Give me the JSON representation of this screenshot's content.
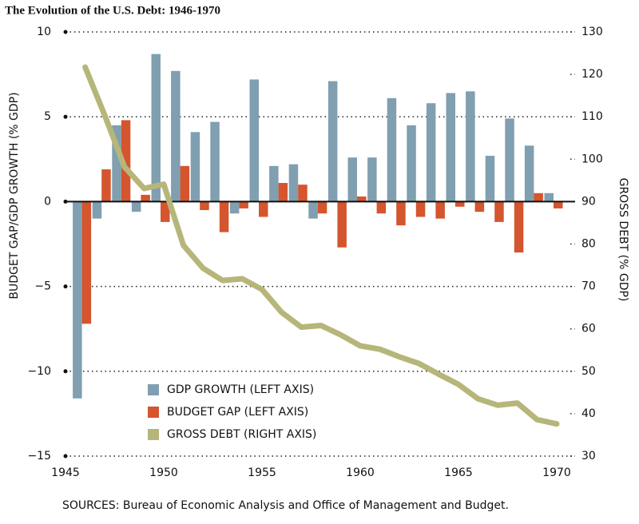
{
  "chart_data": {
    "type": "bar",
    "title": "The Evolution of the U.S. Debt: 1946-1970",
    "ylabel": "BUDGET GAP/GDP GROWTH (% GDP)",
    "y2label": "GROSS DEBT (% GDP)",
    "source": "SOURCES: Bureau of Economic Analysis and Office of Management and Budget.",
    "x": [
      1946,
      1947,
      1948,
      1949,
      1950,
      1951,
      1952,
      1953,
      1954,
      1955,
      1956,
      1957,
      1958,
      1959,
      1960,
      1961,
      1962,
      1963,
      1964,
      1965,
      1966,
      1967,
      1968,
      1969,
      1970
    ],
    "xlim": [
      1945,
      1970
    ],
    "xticks": [
      1945,
      1950,
      1955,
      1960,
      1965,
      1970
    ],
    "ylim": [
      -15,
      10
    ],
    "yticks": [
      {
        "value": -15,
        "label": "−15"
      },
      {
        "value": -10,
        "label": "−10"
      },
      {
        "value": -5,
        "label": "−5"
      },
      0,
      5,
      10
    ],
    "y2lim": [
      30,
      130
    ],
    "y2ticks": [
      30,
      40,
      50,
      60,
      70,
      80,
      90,
      100,
      110,
      120,
      130
    ],
    "grid": true,
    "legend": "lower-left",
    "series": [
      {
        "name": "GDP GROWTH (LEFT AXIS)",
        "type": "bar",
        "color": "#809fb0",
        "values": [
          -11.6,
          -1.0,
          4.5,
          -0.6,
          8.7,
          7.7,
          4.1,
          4.7,
          -0.7,
          7.2,
          2.1,
          2.2,
          -1.0,
          7.1,
          2.6,
          2.6,
          6.1,
          4.5,
          5.8,
          6.4,
          6.5,
          2.7,
          4.9,
          3.3,
          0.5
        ]
      },
      {
        "name": "BUDGET GAP (LEFT AXIS)",
        "type": "bar",
        "color": "#d4552e",
        "values": [
          -7.2,
          1.9,
          4.8,
          0.4,
          -1.2,
          2.1,
          -0.5,
          -1.8,
          -0.4,
          -0.9,
          1.1,
          1.0,
          -0.7,
          -2.7,
          0.3,
          -0.7,
          -1.4,
          -0.9,
          -1.0,
          -0.3,
          -0.6,
          -1.2,
          -3.0,
          0.5,
          -0.4
        ]
      },
      {
        "name": "GROSS DEBT (RIGHT AXIS)",
        "type": "line",
        "axis": "y2",
        "color": "#b6b67a",
        "values": [
          121.7,
          110.3,
          98.2,
          93.1,
          94.1,
          79.7,
          74.3,
          71.4,
          71.8,
          69.3,
          63.9,
          60.4,
          60.8,
          58.6,
          56.0,
          55.2,
          53.4,
          51.8,
          49.3,
          46.9,
          43.5,
          42.0,
          42.5,
          38.6,
          37.6
        ]
      }
    ]
  }
}
